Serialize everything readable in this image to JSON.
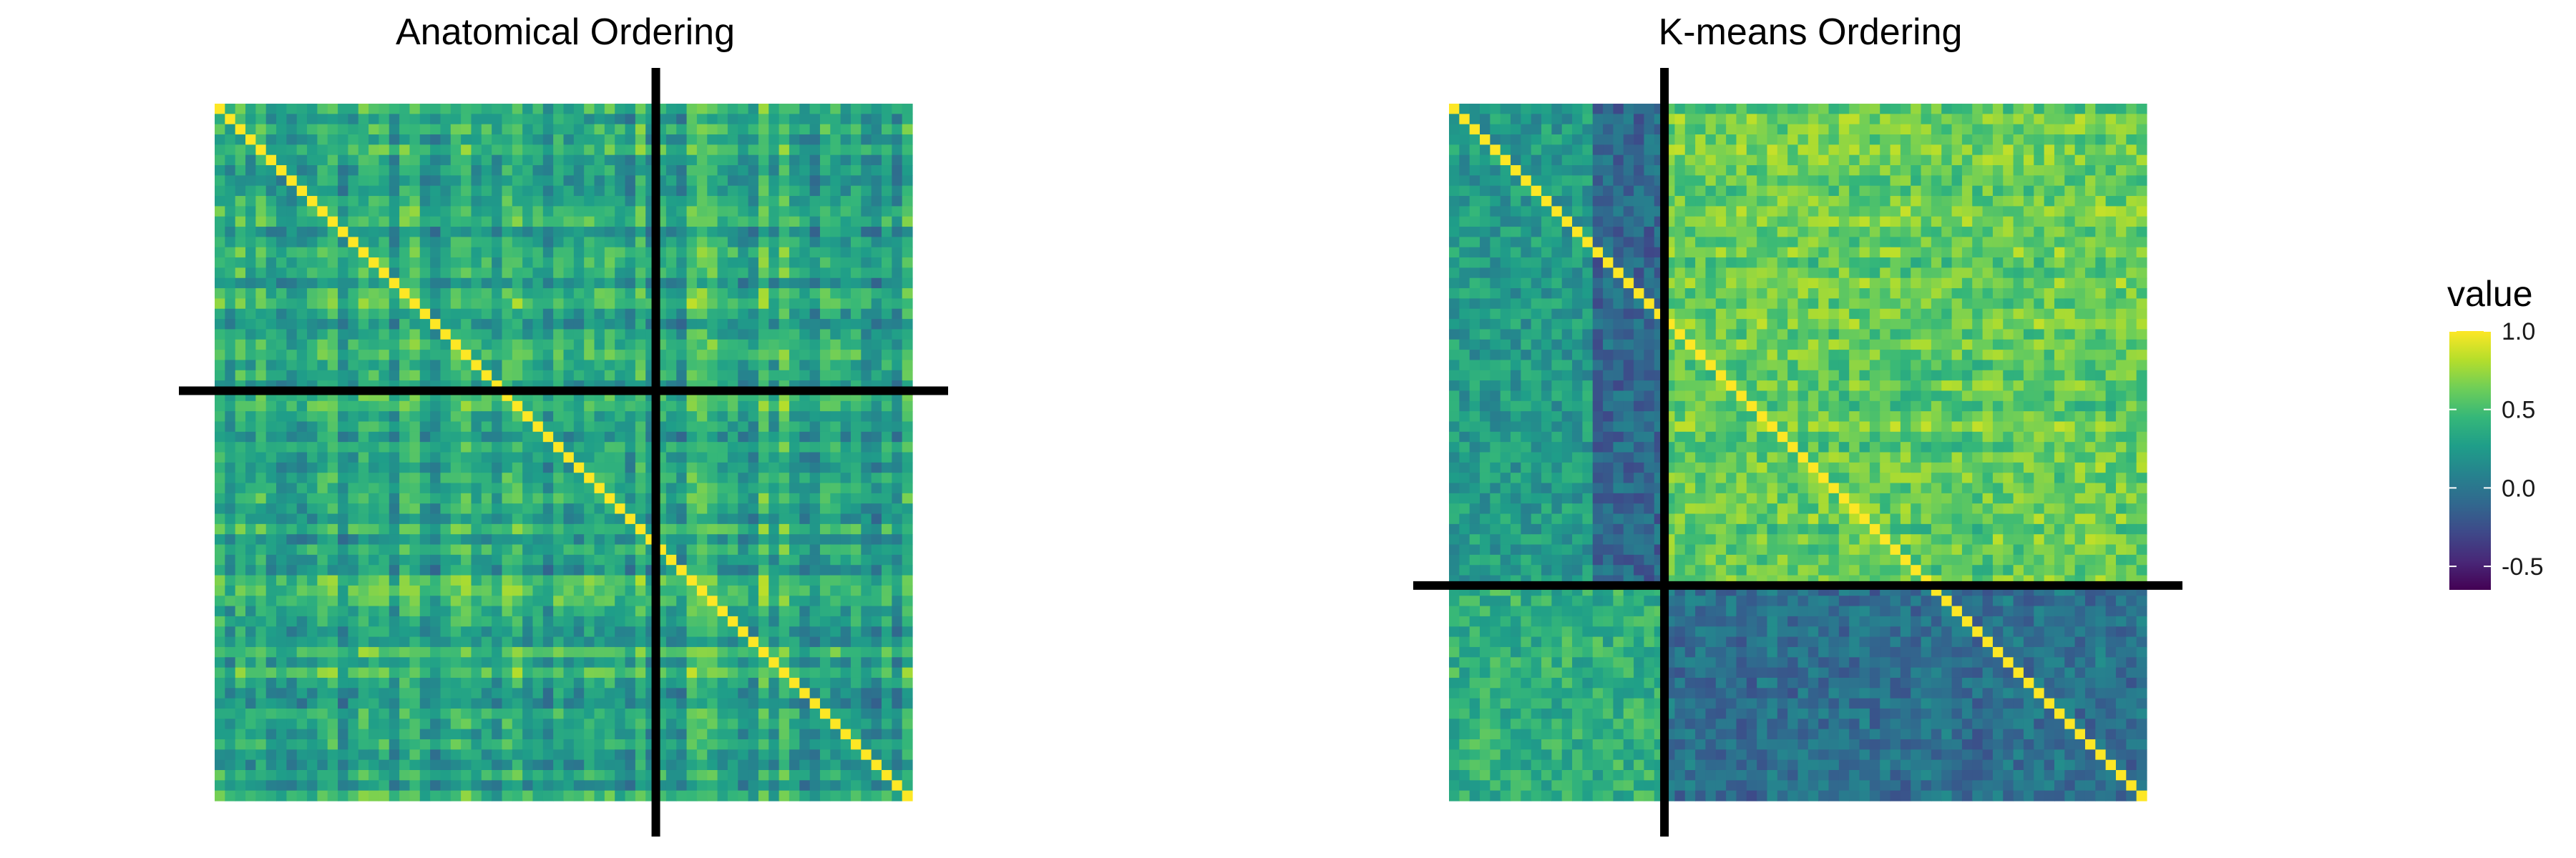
{
  "chart_data": [
    {
      "type": "heatmap",
      "title": "Anatomical Ordering",
      "n": 68,
      "ordering": "anatomical",
      "diagonal_value": 1.0,
      "value_range": [
        -0.65,
        1.0
      ],
      "split_line": {
        "row": 28,
        "col": 43
      },
      "axes_visible": false,
      "grid": false
    },
    {
      "type": "heatmap",
      "title": "K-means Ordering",
      "n": 68,
      "ordering": "kmeans",
      "diagonal_value": 1.0,
      "value_range": [
        -0.65,
        1.0
      ],
      "split_line": {
        "row": 47,
        "col": 21
      },
      "axes_visible": false,
      "grid": false
    }
  ],
  "legend": {
    "title": "value",
    "ticks": [
      "1.0",
      "0.5",
      "0.0",
      "-0.5"
    ],
    "tick_values": [
      1.0,
      0.5,
      0.0,
      -0.5
    ],
    "range": [
      -0.65,
      1.0
    ],
    "placement": "right",
    "colormap": "viridis"
  },
  "colors": {
    "viridis_stops": [
      "#440154",
      "#482878",
      "#3e4989",
      "#31688e",
      "#26828e",
      "#1f9e89",
      "#35b779",
      "#6ece58",
      "#b5de2b",
      "#fde725"
    ],
    "split_line": "#000000"
  }
}
